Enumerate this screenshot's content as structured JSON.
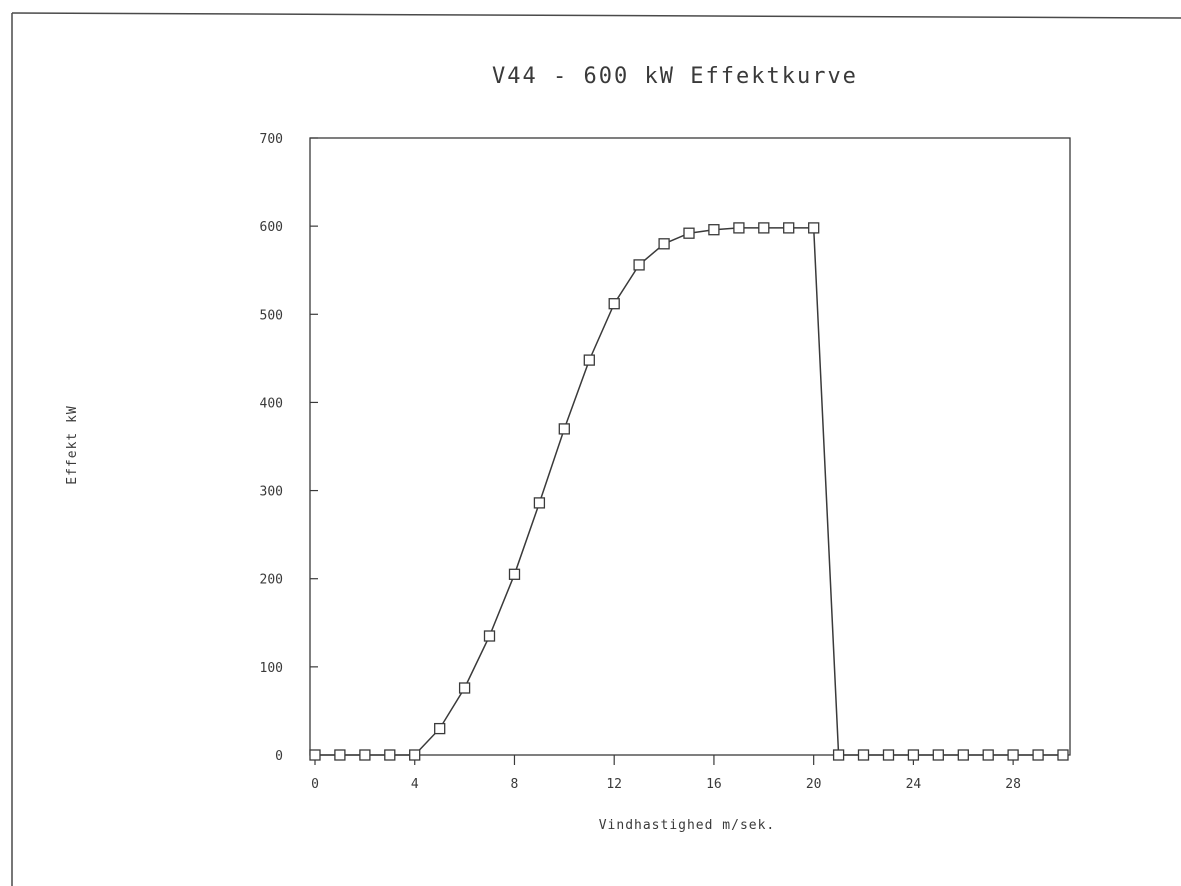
{
  "chart_data": {
    "type": "line",
    "title": "V44 - 600 kW Effektkurve",
    "xlabel": "Vindhastighed m/sek.",
    "ylabel": "Effekt kW",
    "xlim": [
      0,
      30
    ],
    "ylim": [
      0,
      700
    ],
    "x_ticks": [
      0,
      4,
      8,
      12,
      16,
      20,
      24,
      28
    ],
    "y_ticks": [
      0,
      100,
      200,
      300,
      400,
      500,
      600,
      700
    ],
    "grid": false,
    "legend": "none",
    "marker": "square",
    "line_color": "#3a3a3a",
    "series": [
      {
        "x": [
          0,
          1,
          2,
          3,
          4,
          5,
          6,
          7,
          8,
          9,
          10,
          11,
          12,
          13,
          14,
          15,
          16,
          17,
          18,
          19,
          20,
          21,
          22,
          23,
          24,
          25,
          26,
          27,
          28,
          29,
          30
        ],
        "values": [
          0,
          0,
          0,
          0,
          0,
          30,
          76,
          135,
          205,
          286,
          370,
          448,
          512,
          556,
          580,
          592,
          596,
          598,
          598,
          598,
          598,
          0,
          0,
          0,
          0,
          0,
          0,
          0,
          0,
          0,
          0
        ]
      }
    ]
  }
}
